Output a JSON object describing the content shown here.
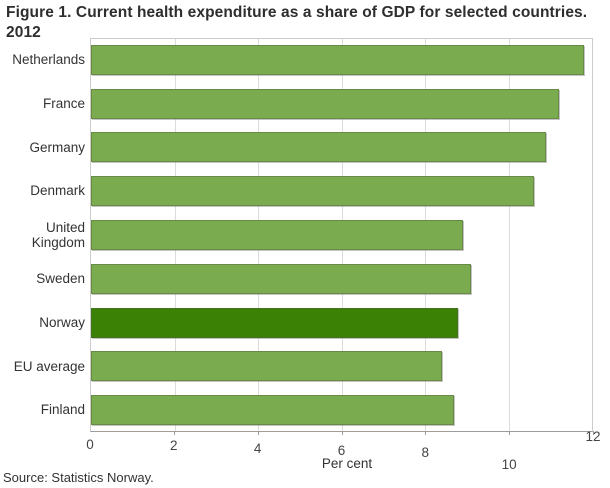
{
  "title": "Figure 1. Current health expenditure as a share of GDP for selected countries. 2012",
  "source": "Source: Statistics Norway.",
  "chart_data": {
    "type": "bar",
    "orientation": "horizontal",
    "title": "Figure 1. Current health expenditure as a share of GDP for selected countries. 2012",
    "categories": [
      "Netherlands",
      "France",
      "Germany",
      "Denmark",
      "United Kingdom",
      "Sweden",
      "Norway",
      "EU average",
      "Finland"
    ],
    "values": [
      11.8,
      11.2,
      10.9,
      10.6,
      8.9,
      9.1,
      8.8,
      8.4,
      8.7
    ],
    "highlight_category": "Norway",
    "xlabel": "Per cent",
    "xlim": [
      0,
      12
    ],
    "xticks": [
      0,
      2,
      4,
      6,
      8,
      10,
      12
    ],
    "grid": true,
    "bar_color": "#7aab4f",
    "highlight_color": "#3a8106"
  }
}
